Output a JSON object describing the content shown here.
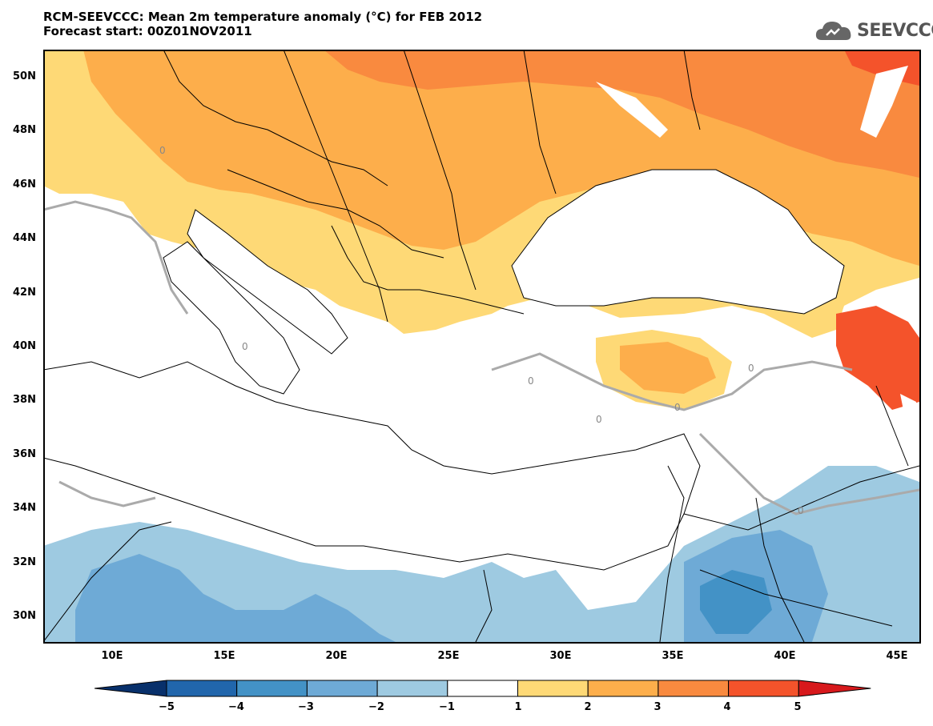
{
  "header": {
    "title_line1": "RCM-SEEVCCC: Mean 2m temperature anomaly (°C) for FEB 2012",
    "title_line2": "Forecast start: 00Z01NOV2011",
    "logo_text": "SEEVCCC"
  },
  "map": {
    "contour_label": "0",
    "lat_labels": [
      "50N",
      "48N",
      "46N",
      "44N",
      "42N",
      "40N",
      "38N",
      "36N",
      "34N",
      "32N",
      "30N"
    ],
    "lon_labels": [
      "10E",
      "15E",
      "20E",
      "25E",
      "30E",
      "35E",
      "40E",
      "45E"
    ]
  },
  "colorbar": {
    "labels": [
      "−5",
      "−4",
      "−3",
      "−2",
      "−1",
      "1",
      "2",
      "3",
      "4",
      "5"
    ],
    "colors": [
      "#08306b",
      "#2166ac",
      "#4392c6",
      "#6eaad6",
      "#9ecae1",
      "#ffffff",
      "#fed976",
      "#fdae4b",
      "#f98a3f",
      "#f4532b",
      "#d7191c"
    ]
  }
}
